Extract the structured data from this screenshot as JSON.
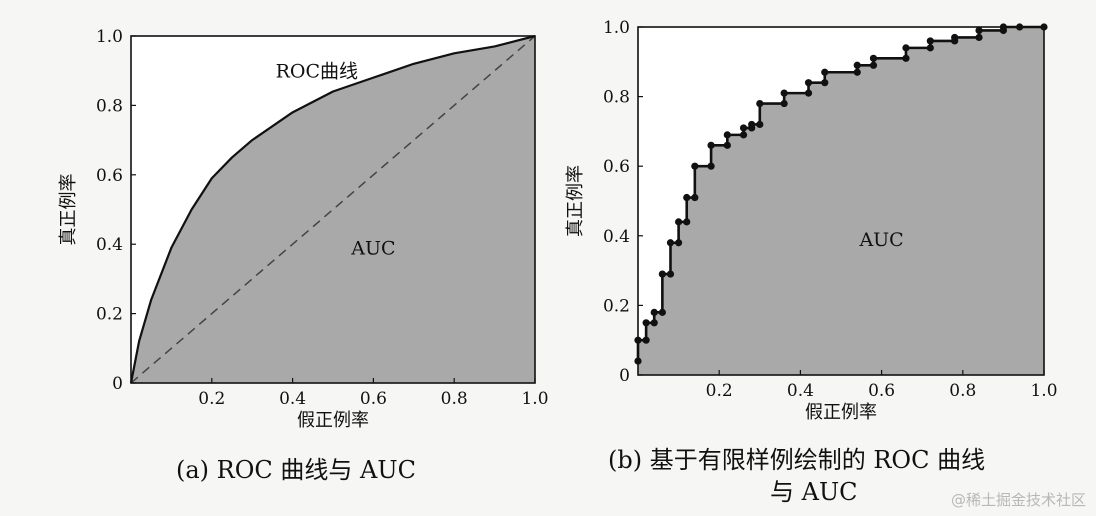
{
  "chart_data": [
    {
      "type": "area",
      "panel": "a",
      "caption": "(a) ROC 曲线与 AUC",
      "xlabel": "假正例率",
      "ylabel": "真正例率",
      "xlim": [
        0,
        1
      ],
      "ylim": [
        0,
        1
      ],
      "x_ticks": [
        "0.2",
        "0.4",
        "0.6",
        "0.8",
        "1.0"
      ],
      "y_ticks": [
        "0",
        "0.2",
        "0.4",
        "0.6",
        "0.8",
        "1.0"
      ],
      "curve_label": "ROC曲线",
      "area_label": "AUC",
      "diagonal": true,
      "series": [
        {
          "name": "ROC曲线",
          "x": [
            0,
            0.02,
            0.05,
            0.1,
            0.15,
            0.2,
            0.25,
            0.3,
            0.4,
            0.5,
            0.6,
            0.7,
            0.8,
            0.9,
            1.0
          ],
          "y": [
            0,
            0.12,
            0.24,
            0.39,
            0.5,
            0.59,
            0.65,
            0.7,
            0.78,
            0.84,
            0.88,
            0.92,
            0.95,
            0.97,
            1.0
          ]
        }
      ]
    },
    {
      "type": "area",
      "panel": "b",
      "caption_line1": "(b) 基于有限样例绘制的 ROC 曲线",
      "caption_line2": "与 AUC",
      "xlabel": "假正例率",
      "ylabel": "真正例率",
      "xlim": [
        0,
        1
      ],
      "ylim": [
        0,
        1
      ],
      "x_ticks": [
        "0.2",
        "0.4",
        "0.6",
        "0.8",
        "1.0"
      ],
      "y_ticks": [
        "0",
        "0.2",
        "0.4",
        "0.6",
        "0.8",
        "1.0"
      ],
      "area_label": "AUC",
      "series": [
        {
          "x": [
            0,
            0,
            0.02,
            0.02,
            0.04,
            0.04,
            0.06,
            0.06,
            0.08,
            0.08,
            0.1,
            0.1,
            0.12,
            0.12,
            0.14,
            0.14,
            0.18,
            0.18,
            0.22,
            0.22,
            0.26,
            0.26,
            0.28,
            0.28,
            0.3,
            0.3,
            0.36,
            0.36,
            0.42,
            0.42,
            0.46,
            0.46,
            0.54,
            0.54,
            0.58,
            0.58,
            0.66,
            0.66,
            0.72,
            0.72,
            0.78,
            0.78,
            0.84,
            0.84,
            0.9,
            0.9,
            0.94,
            0.94,
            1.0
          ],
          "y": [
            0.04,
            0.1,
            0.1,
            0.15,
            0.15,
            0.18,
            0.18,
            0.29,
            0.29,
            0.38,
            0.38,
            0.44,
            0.44,
            0.51,
            0.51,
            0.6,
            0.6,
            0.66,
            0.66,
            0.69,
            0.69,
            0.71,
            0.71,
            0.72,
            0.72,
            0.78,
            0.78,
            0.81,
            0.81,
            0.84,
            0.84,
            0.87,
            0.87,
            0.89,
            0.89,
            0.91,
            0.91,
            0.94,
            0.94,
            0.96,
            0.96,
            0.97,
            0.97,
            0.99,
            0.99,
            1.0,
            1.0,
            1.0,
            1.0
          ]
        }
      ]
    }
  ],
  "watermark": "@稀土掘金技术社区"
}
